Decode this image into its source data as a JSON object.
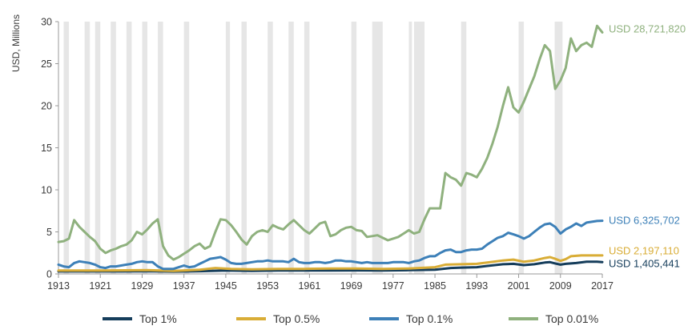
{
  "chart_data": {
    "type": "line",
    "ylabel": "USD, Millions",
    "xlabel": "",
    "title": "",
    "xlim": [
      1913,
      2017
    ],
    "ylim": [
      0,
      30
    ],
    "x_ticks": [
      "1913",
      "1921",
      "1929",
      "1937",
      "1945",
      "1953",
      "1961",
      "1969",
      "1977",
      "1985",
      "1993",
      "2001",
      "2009",
      "2017"
    ],
    "y_ticks": [
      "0",
      "5",
      "10",
      "15",
      "20",
      "25",
      "30"
    ],
    "legend_position": "bottom",
    "recession_shading": [
      [
        1914,
        1915
      ],
      [
        1918,
        1919
      ],
      [
        1920,
        1921
      ],
      [
        1923,
        1924
      ],
      [
        1926,
        1927
      ],
      [
        1929,
        1930
      ],
      [
        1932,
        1933
      ],
      [
        1937,
        1938
      ],
      [
        1945,
        1945.8
      ],
      [
        1948,
        1949
      ],
      [
        1953,
        1954
      ],
      [
        1957,
        1958
      ],
      [
        1960,
        1961
      ],
      [
        1969,
        1970
      ],
      [
        1973,
        1975
      ],
      [
        1980,
        1980.6
      ],
      [
        1981,
        1983
      ],
      [
        1990,
        1991
      ],
      [
        2001,
        2002
      ],
      [
        2007.9,
        2009.4
      ]
    ],
    "series": [
      {
        "name": "Top 1%",
        "color": "#153d5b",
        "end_label": "USD 1,405,441",
        "points": [
          [
            1913,
            0.3
          ],
          [
            1918,
            0.3
          ],
          [
            1925,
            0.3
          ],
          [
            1930,
            0.32
          ],
          [
            1935,
            0.28
          ],
          [
            1940,
            0.32
          ],
          [
            1945,
            0.4
          ],
          [
            1950,
            0.35
          ],
          [
            1955,
            0.4
          ],
          [
            1960,
            0.4
          ],
          [
            1965,
            0.4
          ],
          [
            1970,
            0.42
          ],
          [
            1975,
            0.4
          ],
          [
            1980,
            0.45
          ],
          [
            1985,
            0.5
          ],
          [
            1988,
            0.7
          ],
          [
            1990,
            0.75
          ],
          [
            1993,
            0.8
          ],
          [
            1995,
            0.95
          ],
          [
            1998,
            1.15
          ],
          [
            2000,
            1.2
          ],
          [
            2002,
            1.05
          ],
          [
            2004,
            1.15
          ],
          [
            2006,
            1.35
          ],
          [
            2007,
            1.4
          ],
          [
            2008,
            1.25
          ],
          [
            2009,
            1.1
          ],
          [
            2010,
            1.2
          ],
          [
            2012,
            1.3
          ],
          [
            2014,
            1.45
          ],
          [
            2016,
            1.45
          ],
          [
            2017,
            1.405
          ]
        ]
      },
      {
        "name": "Top 0.5%",
        "color": "#d9ad36",
        "end_label": "USD 2,197,110",
        "points": [
          [
            1913,
            0.4
          ],
          [
            1920,
            0.4
          ],
          [
            1930,
            0.45
          ],
          [
            1935,
            0.35
          ],
          [
            1940,
            0.5
          ],
          [
            1943,
            0.7
          ],
          [
            1946,
            0.6
          ],
          [
            1950,
            0.55
          ],
          [
            1955,
            0.6
          ],
          [
            1960,
            0.6
          ],
          [
            1965,
            0.65
          ],
          [
            1970,
            0.65
          ],
          [
            1975,
            0.6
          ],
          [
            1980,
            0.65
          ],
          [
            1985,
            0.8
          ],
          [
            1987,
            1.1
          ],
          [
            1990,
            1.15
          ],
          [
            1993,
            1.2
          ],
          [
            1995,
            1.35
          ],
          [
            1998,
            1.6
          ],
          [
            2000,
            1.7
          ],
          [
            2002,
            1.45
          ],
          [
            2004,
            1.6
          ],
          [
            2006,
            1.9
          ],
          [
            2007,
            2.0
          ],
          [
            2008,
            1.8
          ],
          [
            2009,
            1.55
          ],
          [
            2010,
            1.75
          ],
          [
            2011,
            2.1
          ],
          [
            2013,
            2.2
          ],
          [
            2015,
            2.2
          ],
          [
            2017,
            2.197
          ]
        ]
      },
      {
        "name": "Top 0.1%",
        "color": "#3d80b8",
        "end_label": "USD 6,325,702",
        "points": [
          [
            1913,
            1.1
          ],
          [
            1914,
            0.9
          ],
          [
            1915,
            0.8
          ],
          [
            1916,
            1.3
          ],
          [
            1917,
            1.5
          ],
          [
            1918,
            1.4
          ],
          [
            1919,
            1.3
          ],
          [
            1920,
            1.1
          ],
          [
            1921,
            0.8
          ],
          [
            1922,
            0.7
          ],
          [
            1923,
            0.9
          ],
          [
            1924,
            0.9
          ],
          [
            1925,
            1.0
          ],
          [
            1926,
            1.1
          ],
          [
            1927,
            1.2
          ],
          [
            1928,
            1.4
          ],
          [
            1929,
            1.5
          ],
          [
            1930,
            1.4
          ],
          [
            1931,
            1.4
          ],
          [
            1932,
            0.9
          ],
          [
            1933,
            0.6
          ],
          [
            1934,
            0.6
          ],
          [
            1935,
            0.6
          ],
          [
            1936,
            0.8
          ],
          [
            1937,
            1.0
          ],
          [
            1938,
            0.8
          ],
          [
            1939,
            0.9
          ],
          [
            1940,
            1.2
          ],
          [
            1941,
            1.5
          ],
          [
            1942,
            1.8
          ],
          [
            1943,
            1.9
          ],
          [
            1944,
            2.0
          ],
          [
            1945,
            1.7
          ],
          [
            1946,
            1.3
          ],
          [
            1947,
            1.2
          ],
          [
            1948,
            1.2
          ],
          [
            1949,
            1.3
          ],
          [
            1950,
            1.4
          ],
          [
            1951,
            1.5
          ],
          [
            1952,
            1.5
          ],
          [
            1953,
            1.6
          ],
          [
            1954,
            1.5
          ],
          [
            1955,
            1.5
          ],
          [
            1956,
            1.5
          ],
          [
            1957,
            1.4
          ],
          [
            1958,
            1.8
          ],
          [
            1959,
            1.4
          ],
          [
            1960,
            1.3
          ],
          [
            1961,
            1.3
          ],
          [
            1962,
            1.4
          ],
          [
            1963,
            1.4
          ],
          [
            1964,
            1.3
          ],
          [
            1965,
            1.4
          ],
          [
            1966,
            1.6
          ],
          [
            1967,
            1.6
          ],
          [
            1968,
            1.5
          ],
          [
            1969,
            1.5
          ],
          [
            1970,
            1.4
          ],
          [
            1971,
            1.3
          ],
          [
            1972,
            1.4
          ],
          [
            1973,
            1.3
          ],
          [
            1974,
            1.3
          ],
          [
            1975,
            1.3
          ],
          [
            1976,
            1.3
          ],
          [
            1977,
            1.4
          ],
          [
            1978,
            1.4
          ],
          [
            1979,
            1.4
          ],
          [
            1980,
            1.3
          ],
          [
            1981,
            1.5
          ],
          [
            1982,
            1.6
          ],
          [
            1983,
            1.9
          ],
          [
            1984,
            2.1
          ],
          [
            1985,
            2.1
          ],
          [
            1986,
            2.5
          ],
          [
            1987,
            2.8
          ],
          [
            1988,
            2.9
          ],
          [
            1989,
            2.6
          ],
          [
            1990,
            2.6
          ],
          [
            1991,
            2.8
          ],
          [
            1992,
            2.9
          ],
          [
            1993,
            2.9
          ],
          [
            1994,
            3.0
          ],
          [
            1995,
            3.5
          ],
          [
            1996,
            3.9
          ],
          [
            1997,
            4.3
          ],
          [
            1998,
            4.5
          ],
          [
            1999,
            4.9
          ],
          [
            2000,
            4.7
          ],
          [
            2001,
            4.5
          ],
          [
            2002,
            4.2
          ],
          [
            2003,
            4.5
          ],
          [
            2004,
            5.0
          ],
          [
            2005,
            5.5
          ],
          [
            2006,
            5.9
          ],
          [
            2007,
            6.0
          ],
          [
            2008,
            5.6
          ],
          [
            2009,
            4.8
          ],
          [
            2010,
            5.3
          ],
          [
            2011,
            5.6
          ],
          [
            2012,
            6.0
          ],
          [
            2013,
            5.7
          ],
          [
            2014,
            6.1
          ],
          [
            2015,
            6.2
          ],
          [
            2016,
            6.3
          ],
          [
            2017,
            6.326
          ]
        ]
      },
      {
        "name": "Top 0.01%",
        "color": "#8fb17e",
        "end_label": "USD 28,721,820",
        "points": [
          [
            1913,
            3.8
          ],
          [
            1914,
            3.9
          ],
          [
            1915,
            4.2
          ],
          [
            1916,
            6.4
          ],
          [
            1917,
            5.6
          ],
          [
            1918,
            5.0
          ],
          [
            1919,
            4.4
          ],
          [
            1920,
            3.9
          ],
          [
            1921,
            3.0
          ],
          [
            1922,
            2.5
          ],
          [
            1923,
            2.8
          ],
          [
            1924,
            3.0
          ],
          [
            1925,
            3.3
          ],
          [
            1926,
            3.5
          ],
          [
            1927,
            4.0
          ],
          [
            1928,
            5.0
          ],
          [
            1929,
            4.7
          ],
          [
            1930,
            5.3
          ],
          [
            1931,
            6.0
          ],
          [
            1932,
            6.5
          ],
          [
            1933,
            3.3
          ],
          [
            1934,
            2.2
          ],
          [
            1935,
            1.7
          ],
          [
            1936,
            2.0
          ],
          [
            1937,
            2.4
          ],
          [
            1938,
            2.8
          ],
          [
            1939,
            3.3
          ],
          [
            1940,
            3.6
          ],
          [
            1941,
            3.0
          ],
          [
            1942,
            3.3
          ],
          [
            1943,
            5.0
          ],
          [
            1944,
            6.5
          ],
          [
            1945,
            6.4
          ],
          [
            1946,
            5.8
          ],
          [
            1947,
            5.0
          ],
          [
            1948,
            4.1
          ],
          [
            1949,
            3.5
          ],
          [
            1950,
            4.5
          ],
          [
            1951,
            5.0
          ],
          [
            1952,
            5.2
          ],
          [
            1953,
            5.0
          ],
          [
            1954,
            5.8
          ],
          [
            1955,
            5.5
          ],
          [
            1956,
            5.3
          ],
          [
            1957,
            5.9
          ],
          [
            1958,
            6.4
          ],
          [
            1959,
            5.8
          ],
          [
            1960,
            5.2
          ],
          [
            1961,
            4.8
          ],
          [
            1962,
            5.4
          ],
          [
            1963,
            6.0
          ],
          [
            1964,
            6.2
          ],
          [
            1965,
            4.5
          ],
          [
            1966,
            4.7
          ],
          [
            1967,
            5.2
          ],
          [
            1968,
            5.5
          ],
          [
            1969,
            5.6
          ],
          [
            1970,
            5.2
          ],
          [
            1971,
            5.1
          ],
          [
            1972,
            4.4
          ],
          [
            1973,
            4.5
          ],
          [
            1974,
            4.6
          ],
          [
            1975,
            4.3
          ],
          [
            1976,
            4.0
          ],
          [
            1977,
            4.2
          ],
          [
            1978,
            4.4
          ],
          [
            1979,
            4.8
          ],
          [
            1980,
            5.2
          ],
          [
            1981,
            4.8
          ],
          [
            1982,
            5.0
          ],
          [
            1983,
            6.5
          ],
          [
            1984,
            7.8
          ],
          [
            1985,
            7.8
          ],
          [
            1986,
            7.8
          ],
          [
            1987,
            12.0
          ],
          [
            1988,
            11.5
          ],
          [
            1989,
            11.2
          ],
          [
            1990,
            10.5
          ],
          [
            1991,
            12.0
          ],
          [
            1992,
            11.8
          ],
          [
            1993,
            11.5
          ],
          [
            1994,
            12.5
          ],
          [
            1995,
            13.8
          ],
          [
            1996,
            15.5
          ],
          [
            1997,
            17.5
          ],
          [
            1998,
            20.0
          ],
          [
            1999,
            22.2
          ],
          [
            2000,
            19.8
          ],
          [
            2001,
            19.2
          ],
          [
            2002,
            20.5
          ],
          [
            2003,
            22.0
          ],
          [
            2004,
            23.5
          ],
          [
            2005,
            25.5
          ],
          [
            2006,
            27.2
          ],
          [
            2007,
            26.5
          ],
          [
            2008,
            22.0
          ],
          [
            2009,
            23.0
          ],
          [
            2010,
            24.5
          ],
          [
            2011,
            28.0
          ],
          [
            2012,
            26.5
          ],
          [
            2013,
            27.2
          ],
          [
            2014,
            27.5
          ],
          [
            2015,
            27.0
          ],
          [
            2016,
            29.5
          ],
          [
            2017,
            28.722
          ]
        ]
      }
    ]
  }
}
